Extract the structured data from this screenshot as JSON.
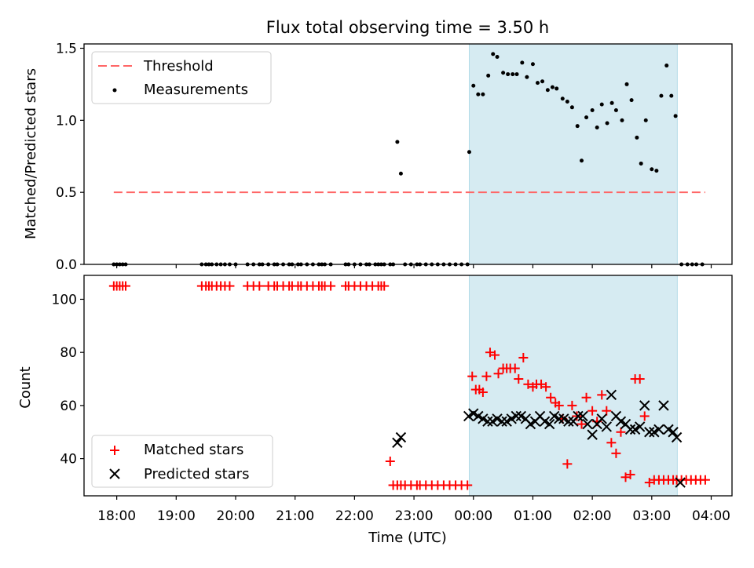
{
  "figure": {
    "title": "Flux total observing time = 3.50 h",
    "xlabel": "Time (UTC)",
    "x_tick_labels": [
      "18:00",
      "19:00",
      "20:00",
      "21:00",
      "22:00",
      "23:00",
      "00:00",
      "01:00",
      "02:00",
      "03:00",
      "04:00"
    ]
  },
  "chart_data": [
    {
      "type": "scatter",
      "title": "Flux total observing time = 3.50 h",
      "ylabel": "Matched/Predicted stars",
      "xlabel": "",
      "x_unit": "hours since 18:00 UTC",
      "xlim": [
        -0.55,
        10.35
      ],
      "ylim": [
        0,
        1.53
      ],
      "y_ticks": [
        0.0,
        0.5,
        1.0,
        1.5
      ],
      "y_tick_labels": [
        "0.0",
        "0.5",
        "1.0",
        "1.5"
      ],
      "highlight_span": {
        "x": [
          5.93,
          9.43
        ],
        "color": "#add8e6"
      },
      "threshold": {
        "name": "Threshold",
        "value": 0.5,
        "x": [
          -0.05,
          9.9
        ],
        "color": "#ff6666"
      },
      "legend_placement": "upper left",
      "series": [
        {
          "name": "Measurements",
          "color": "#000000",
          "x": [
            -0.05,
            0.0,
            0.05,
            0.1,
            0.15,
            1.43,
            1.5,
            1.55,
            1.6,
            1.68,
            1.75,
            1.82,
            1.9,
            2.0,
            2.2,
            2.3,
            2.4,
            2.45,
            2.55,
            2.65,
            2.7,
            2.8,
            2.9,
            2.95,
            3.05,
            3.1,
            3.2,
            3.3,
            3.4,
            3.45,
            3.5,
            3.6,
            3.85,
            3.9,
            4.0,
            4.1,
            4.2,
            4.25,
            4.35,
            4.4,
            4.45,
            4.5,
            4.6,
            4.65,
            4.72,
            4.78,
            4.85,
            4.95,
            5.05,
            5.1,
            5.2,
            5.3,
            5.4,
            5.5,
            5.6,
            5.7,
            5.8,
            5.9,
            5.93,
            6.0,
            6.08,
            6.16,
            6.25,
            6.33,
            6.4,
            6.5,
            6.58,
            6.66,
            6.73,
            6.82,
            6.9,
            7.0,
            7.08,
            7.16,
            7.25,
            7.33,
            7.4,
            7.5,
            7.58,
            7.66,
            7.75,
            7.82,
            7.9,
            8.0,
            8.08,
            8.16,
            8.25,
            8.33,
            8.4,
            8.5,
            8.58,
            8.66,
            8.75,
            8.82,
            8.9,
            9.0,
            9.08,
            9.16,
            9.25,
            9.33,
            9.4,
            9.5,
            9.6,
            9.68,
            9.75,
            9.85
          ],
          "y": [
            0,
            0,
            0,
            0,
            0,
            0,
            0,
            0,
            0,
            0,
            0,
            0,
            0,
            0,
            0,
            0,
            0,
            0,
            0,
            0,
            0,
            0,
            0,
            0,
            0,
            0,
            0,
            0,
            0,
            0,
            0,
            0,
            0,
            0,
            0,
            0,
            0,
            0,
            0,
            0,
            0,
            0,
            0,
            0,
            0.85,
            0.63,
            0,
            0,
            0,
            0,
            0,
            0,
            0,
            0,
            0,
            0,
            0,
            0,
            0.78,
            1.24,
            1.18,
            1.18,
            1.31,
            1.46,
            1.44,
            1.33,
            1.32,
            1.32,
            1.32,
            1.4,
            1.3,
            1.39,
            1.26,
            1.27,
            1.21,
            1.23,
            1.22,
            1.15,
            1.13,
            1.09,
            0.96,
            0.72,
            1.02,
            1.07,
            0.95,
            1.11,
            0.98,
            1.12,
            1.07,
            1.0,
            1.25,
            1.14,
            0.88,
            0.7,
            1.0,
            0.66,
            0.65,
            1.17,
            1.38,
            1.17,
            1.03,
            0,
            0,
            0,
            0,
            0
          ]
        }
      ]
    },
    {
      "type": "scatter",
      "ylabel": "Count",
      "xlabel": "Time (UTC)",
      "x_unit": "hours since 18:00 UTC",
      "xlim": [
        -0.55,
        10.35
      ],
      "ylim": [
        26,
        109
      ],
      "y_ticks": [
        40,
        60,
        80,
        100
      ],
      "y_tick_labels": [
        "40",
        "60",
        "80",
        "100"
      ],
      "highlight_span": {
        "x": [
          5.93,
          9.43
        ],
        "color": "#add8e6"
      },
      "legend_placement": "lower left",
      "series": [
        {
          "name": "Matched stars",
          "marker": "+",
          "color": "#ff0000",
          "x": [
            -0.05,
            0.0,
            0.05,
            0.1,
            0.15,
            1.43,
            1.5,
            1.55,
            1.6,
            1.68,
            1.75,
            1.82,
            1.9,
            2.2,
            2.3,
            2.4,
            2.55,
            2.65,
            2.7,
            2.8,
            2.9,
            2.95,
            3.05,
            3.1,
            3.2,
            3.3,
            3.4,
            3.45,
            3.5,
            3.6,
            3.85,
            3.9,
            4.0,
            4.1,
            4.2,
            4.3,
            4.4,
            4.45,
            4.5,
            4.6,
            4.65,
            4.72,
            4.78,
            4.85,
            4.95,
            5.05,
            5.1,
            5.2,
            5.3,
            5.4,
            5.5,
            5.6,
            5.7,
            5.8,
            5.9,
            5.98,
            6.04,
            6.1,
            6.16,
            6.22,
            6.28,
            6.36,
            6.42,
            6.5,
            6.56,
            6.62,
            6.7,
            6.76,
            6.84,
            6.92,
            7.0,
            7.06,
            7.14,
            7.22,
            7.3,
            7.38,
            7.44,
            7.5,
            7.58,
            7.66,
            7.74,
            7.82,
            7.9,
            8.0,
            8.08,
            8.16,
            8.24,
            8.32,
            8.4,
            8.48,
            8.56,
            8.64,
            8.72,
            8.8,
            8.88,
            8.96,
            9.04,
            9.12,
            9.2,
            9.28,
            9.36,
            9.42,
            9.5,
            9.58,
            9.66,
            9.74,
            9.82,
            9.9
          ],
          "y": [
            105,
            105,
            105,
            105,
            105,
            105,
            105,
            105,
            105,
            105,
            105,
            105,
            105,
            105,
            105,
            105,
            105,
            105,
            105,
            105,
            105,
            105,
            105,
            105,
            105,
            105,
            105,
            105,
            105,
            105,
            105,
            105,
            105,
            105,
            105,
            105,
            105,
            105,
            105,
            39,
            30,
            30,
            30,
            30,
            30,
            30,
            30,
            30,
            30,
            30,
            30,
            30,
            30,
            30,
            30,
            71,
            66,
            66,
            65,
            71,
            80,
            79,
            72,
            74,
            74,
            74,
            74,
            70,
            78,
            68,
            67,
            68,
            68,
            67,
            63,
            61,
            60,
            55,
            38,
            60,
            56,
            53,
            63,
            58,
            54,
            64,
            58,
            46,
            42,
            50,
            33,
            34,
            70,
            70,
            56,
            31,
            32,
            32,
            32,
            32,
            32,
            32,
            32,
            32,
            32,
            32,
            32,
            32
          ]
        },
        {
          "name": "Predicted stars",
          "marker": "x",
          "color": "#000000",
          "x": [
            4.72,
            4.78,
            5.92,
            6.0,
            6.08,
            6.16,
            6.24,
            6.32,
            6.4,
            6.48,
            6.56,
            6.64,
            6.72,
            6.8,
            6.88,
            6.96,
            7.04,
            7.12,
            7.2,
            7.28,
            7.36,
            7.44,
            7.52,
            7.6,
            7.68,
            7.76,
            7.84,
            7.92,
            8.0,
            8.08,
            8.16,
            8.24,
            8.32,
            8.4,
            8.48,
            8.56,
            8.64,
            8.72,
            8.8,
            8.88,
            8.96,
            9.04,
            9.12,
            9.2,
            9.28,
            9.36,
            9.42,
            9.48
          ],
          "y": [
            46,
            48,
            56,
            57,
            56,
            55,
            54,
            54,
            55,
            54,
            54,
            55,
            56,
            56,
            55,
            53,
            54,
            56,
            54,
            53,
            56,
            55,
            55,
            54,
            54,
            56,
            56,
            53,
            49,
            53,
            55,
            52,
            64,
            56,
            54,
            53,
            51,
            51,
            52,
            60,
            50,
            50,
            51,
            60,
            51,
            50,
            48,
            31
          ]
        }
      ]
    }
  ]
}
